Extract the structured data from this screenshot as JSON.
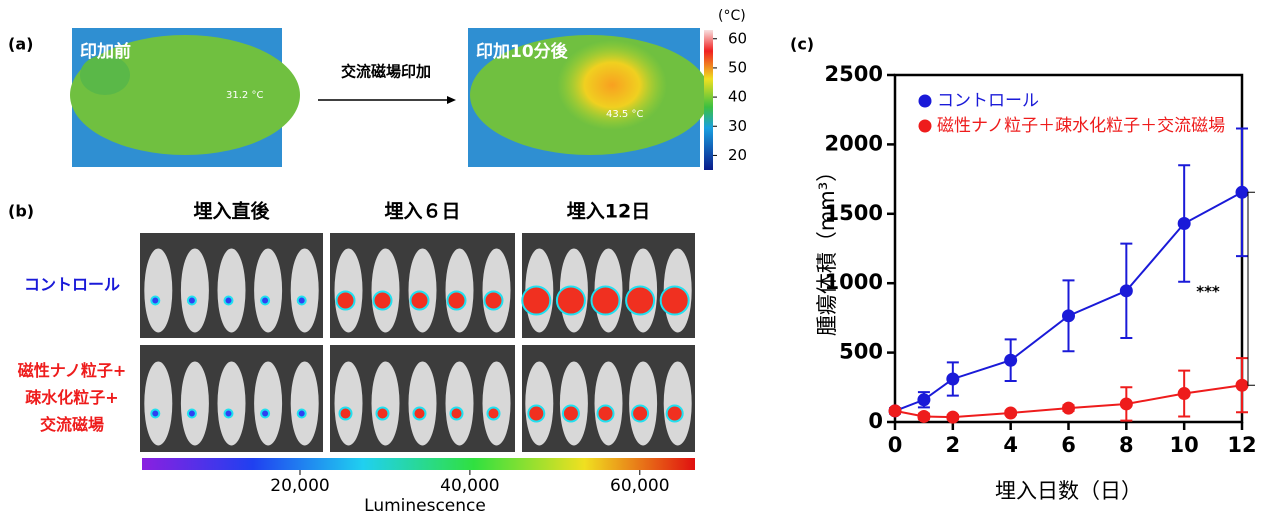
{
  "panel_a": {
    "label": "(a)",
    "before": {
      "title": "印加前",
      "temp": "31.2 °C"
    },
    "arrow_label": "交流磁場印加",
    "after": {
      "title": "印加10分後",
      "temp": "43.5 °C"
    }
  },
  "panel_b": {
    "label": "(b)",
    "columns": [
      "埋入直後",
      "埋入６日",
      "埋入12日"
    ],
    "rows": [
      {
        "label": [
          "コントロール"
        ],
        "color": "#1a1ad8"
      },
      {
        "label": [
          "磁性ナノ粒子+",
          "疎水化粒子+",
          "交流磁場"
        ],
        "color": "#ee1c1c"
      }
    ]
  },
  "chart_data": [
    {
      "type": "colorbar",
      "orientation": "vertical",
      "unit_label": "(°C)",
      "ylim": [
        15,
        63
      ],
      "yticks": [
        20,
        30,
        40,
        50,
        60
      ]
    },
    {
      "type": "colorbar",
      "orientation": "horizontal",
      "xlabel": "Luminescence",
      "xlim": [
        1400,
        66500
      ],
      "xticks": [
        {
          "value": 20000,
          "label": "20,000"
        },
        {
          "value": 40000,
          "label": "40,000"
        },
        {
          "value": 60000,
          "label": "60,000"
        }
      ]
    },
    {
      "type": "line",
      "panel_label": "(c)",
      "xlabel": "埋入日数（日）",
      "ylabel": "腫瘍体積（mm³）",
      "x": [
        0,
        1,
        2,
        4,
        6,
        8,
        10,
        12
      ],
      "series": [
        {
          "name": "コントロール",
          "color": "#1a1ad8",
          "values": [
            80,
            160,
            310,
            445,
            765,
            945,
            1430,
            1655
          ],
          "errors": [
            20,
            55,
            120,
            150,
            255,
            340,
            420,
            460
          ]
        },
        {
          "name": "磁性ナノ粒子＋疎水化粒子＋交流磁場",
          "color": "#ee1c1c",
          "values": [
            80,
            40,
            35,
            65,
            100,
            130,
            205,
            265
          ],
          "errors": [
            15,
            20,
            15,
            15,
            20,
            120,
            165,
            195
          ]
        }
      ],
      "xlim": [
        0,
        12
      ],
      "xticks": [
        0,
        2,
        4,
        6,
        8,
        10,
        12
      ],
      "ylim": [
        0,
        2500
      ],
      "yticks": [
        0,
        500,
        1000,
        1500,
        2000,
        2500
      ],
      "legend": "upper left",
      "annotation": "***"
    }
  ]
}
